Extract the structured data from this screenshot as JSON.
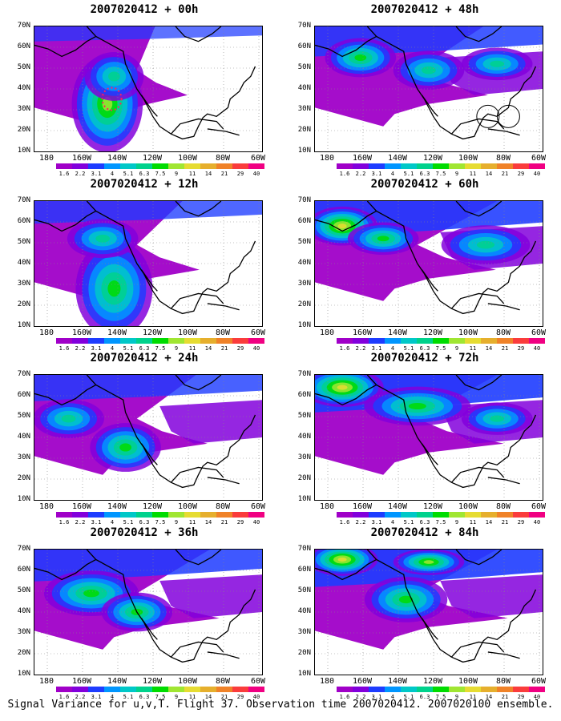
{
  "panels": [
    {
      "title": "2007020412 + 00h"
    },
    {
      "title": "2007020412 + 48h"
    },
    {
      "title": "2007020412 + 12h"
    },
    {
      "title": "2007020412 + 60h"
    },
    {
      "title": "2007020412 + 24h"
    },
    {
      "title": "2007020412 + 72h"
    },
    {
      "title": "2007020412 + 36h"
    },
    {
      "title": "2007020412 + 84h"
    }
  ],
  "lat_labels": [
    "70N",
    "60N",
    "50N",
    "40N",
    "30N",
    "20N",
    "10N"
  ],
  "lon_labels": [
    "180",
    "160W",
    "140W",
    "120W",
    "100W",
    "80W",
    "60W"
  ],
  "colorbar": {
    "levels": [
      "1.6",
      "2.2",
      "3.1",
      "4",
      "5.1",
      "6.3",
      "7.5",
      "9",
      "11",
      "14",
      "21",
      "29",
      "40"
    ],
    "colors": [
      "#a000c8",
      "#8200dc",
      "#1e3cff",
      "#0096ff",
      "#00c8c8",
      "#00d28c",
      "#00dc00",
      "#a0e632",
      "#e6dc32",
      "#e6af2d",
      "#f08228",
      "#fa3c3c",
      "#f00082"
    ]
  },
  "caption": "Signal Variance for u,v,T. Flight 37. Observation time 2007020412. 2007020100 ensemble."
}
